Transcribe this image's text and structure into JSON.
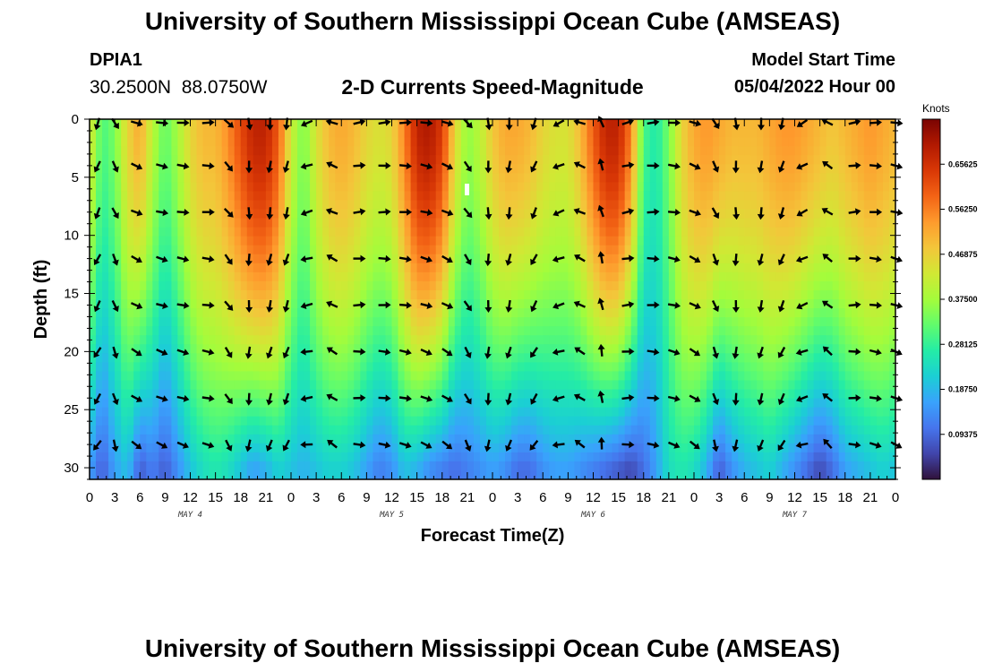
{
  "header": {
    "title": "University of Southern Mississippi Ocean Cube (AMSEAS)",
    "station_id": "DPIA1",
    "station_coords": "30.2500N  88.0750W",
    "chart_title": "2-D Currents Speed-Magnitude",
    "model_label": "Model Start Time",
    "model_date": "05/04/2022 Hour 00"
  },
  "footer": {
    "title": "University of Southern Mississippi Ocean Cube (AMSEAS)"
  },
  "chart_data": {
    "type": "heatmap",
    "title": "2-D Currents Speed-Magnitude",
    "xlabel": "Forecast Time(Z)",
    "ylabel": "Depth (ft)",
    "xlim": [
      0,
      96
    ],
    "ylim": [
      0,
      31
    ],
    "y_inverted": true,
    "x_ticks": [
      "0",
      "3",
      "6",
      "9",
      "12",
      "15",
      "18",
      "21",
      "0",
      "3",
      "6",
      "9",
      "12",
      "15",
      "18",
      "21",
      "0",
      "3",
      "6",
      "9",
      "12",
      "15",
      "18",
      "21",
      "0",
      "3",
      "6",
      "9",
      "12",
      "15",
      "18",
      "21",
      "0"
    ],
    "y_ticks": [
      0,
      5,
      10,
      15,
      20,
      25,
      30
    ],
    "day_labels": [
      {
        "label": "MAY 4",
        "hour": 12
      },
      {
        "label": "MAY 5",
        "hour": 36
      },
      {
        "label": "MAY 6",
        "hour": 60
      },
      {
        "label": "MAY 7",
        "hour": 84
      }
    ],
    "colorbar": {
      "title": "Knots",
      "range": [
        0,
        0.75
      ],
      "ticks": [
        {
          "value": 0.09375,
          "label": "0.09375"
        },
        {
          "value": 0.1875,
          "label": "0.18750"
        },
        {
          "value": 0.28125,
          "label": "0.28125"
        },
        {
          "value": 0.375,
          "label": "0.37500"
        },
        {
          "value": 0.46875,
          "label": "0.46875"
        },
        {
          "value": 0.5625,
          "label": "0.56250"
        },
        {
          "value": 0.65625,
          "label": "0.65625"
        }
      ],
      "colors": [
        "#30123b",
        "#4145ab",
        "#4675ed",
        "#39a2fc",
        "#1bcfd4",
        "#24eca6",
        "#61fc6c",
        "#a4fc3b",
        "#d1e834",
        "#f3c63a",
        "#fe9b2d",
        "#f36315",
        "#d93806",
        "#b11901",
        "#7a0402"
      ]
    },
    "speed_profile_hours": [
      0,
      1.5,
      3,
      4.5,
      6,
      7.5,
      9,
      10.5,
      12,
      13.5,
      15,
      16.5,
      18,
      19.5,
      21,
      22.5,
      24,
      25.5,
      27,
      28.5,
      30,
      31.5,
      33,
      34.5,
      36,
      37.5,
      39,
      40.5,
      42,
      43.5,
      45,
      46.5,
      48,
      49.5,
      51,
      52.5,
      54,
      55.5,
      57,
      58.5,
      60,
      61.5,
      63,
      64.5,
      66,
      67.5,
      69,
      70.5,
      72,
      73.5,
      75,
      76.5,
      78,
      79.5,
      81,
      82.5,
      84,
      85.5,
      87,
      88.5,
      90,
      91.5,
      93,
      94.5,
      96
    ],
    "surface_speed": [
      0.44,
      0.3,
      0.34,
      0.46,
      0.52,
      0.4,
      0.32,
      0.38,
      0.46,
      0.5,
      0.5,
      0.55,
      0.62,
      0.68,
      0.68,
      0.6,
      0.42,
      0.34,
      0.44,
      0.5,
      0.52,
      0.5,
      0.46,
      0.44,
      0.46,
      0.56,
      0.68,
      0.7,
      0.64,
      0.46,
      0.36,
      0.4,
      0.48,
      0.52,
      0.52,
      0.5,
      0.46,
      0.44,
      0.44,
      0.5,
      0.6,
      0.68,
      0.68,
      0.56,
      0.3,
      0.26,
      0.34,
      0.46,
      0.52,
      0.54,
      0.52,
      0.5,
      0.5,
      0.5,
      0.52,
      0.54,
      0.54,
      0.52,
      0.5,
      0.48,
      0.5,
      0.52,
      0.54,
      0.52,
      0.5
    ],
    "bottom_speed": [
      0.16,
      0.08,
      0.16,
      0.2,
      0.08,
      0.12,
      0.08,
      0.14,
      0.2,
      0.24,
      0.26,
      0.24,
      0.2,
      0.16,
      0.18,
      0.22,
      0.2,
      0.18,
      0.2,
      0.22,
      0.22,
      0.2,
      0.16,
      0.12,
      0.14,
      0.2,
      0.18,
      0.14,
      0.12,
      0.1,
      0.12,
      0.14,
      0.16,
      0.14,
      0.1,
      0.1,
      0.14,
      0.16,
      0.16,
      0.14,
      0.12,
      0.1,
      0.08,
      0.06,
      0.1,
      0.16,
      0.24,
      0.26,
      0.24,
      0.18,
      0.08,
      0.14,
      0.18,
      0.2,
      0.22,
      0.18,
      0.14,
      0.1,
      0.06,
      0.1,
      0.16,
      0.18,
      0.2,
      0.22,
      0.2
    ],
    "arrow_hours": [
      1,
      3,
      5.5,
      8.5,
      11,
      14,
      16.5,
      19,
      21.5,
      23.5,
      26,
      29,
      32,
      35,
      37.5,
      40,
      42.5,
      45,
      47.5,
      50,
      53,
      56,
      58.5,
      61,
      64,
      67,
      69.5,
      72,
      74.5,
      77,
      80,
      82.5,
      85,
      88,
      91,
      93.5,
      96
    ],
    "arrow_depths": [
      0,
      4,
      8,
      12,
      16,
      20,
      24,
      28
    ],
    "arrow_direction_deg": [
      200,
      150,
      110,
      100,
      95,
      90,
      135,
      175,
      185,
      190,
      250,
      290,
      80,
      85,
      90,
      100,
      110,
      140,
      175,
      185,
      200,
      245,
      290,
      340,
      75,
      85,
      95,
      110,
      150,
      175,
      185,
      195,
      240,
      300,
      80,
      90,
      100
    ]
  }
}
